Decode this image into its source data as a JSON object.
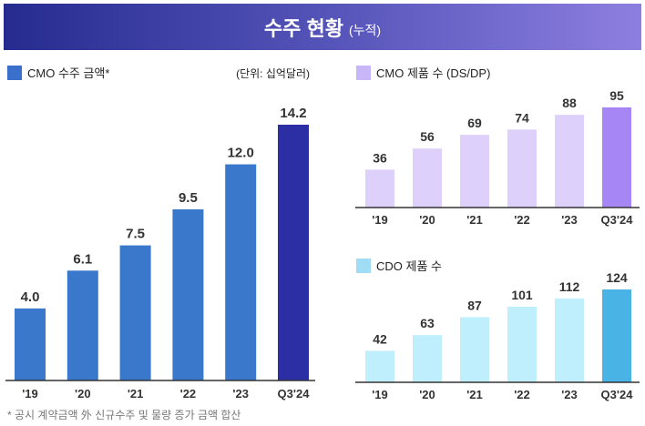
{
  "title": {
    "main": "수주 현황",
    "sub": "(누적)"
  },
  "footnote": "* 공시 계약금액 外 신규수주 및 물량 증가 금액 합산",
  "chart_data": [
    {
      "type": "bar",
      "legend": "CMO 수주 금액*",
      "unit": "(단위: 십억달러)",
      "categories": [
        "'19",
        "'20",
        "'21",
        "'22",
        "'23",
        "Q3'24"
      ],
      "values": [
        4.0,
        6.1,
        7.5,
        9.5,
        12.0,
        14.2
      ],
      "decimals": 1,
      "colors": {
        "bar": "#3a78cc",
        "highlight": "#2b2fa3",
        "legend": "#3a6fcc"
      },
      "ylim": [
        0,
        14.2
      ]
    },
    {
      "type": "bar",
      "legend": "CMO 제품 수 (DS/DP)",
      "categories": [
        "'19",
        "'20",
        "'21",
        "'22",
        "'23",
        "Q3'24"
      ],
      "values": [
        36,
        56,
        69,
        74,
        88,
        95
      ],
      "decimals": 0,
      "colors": {
        "bar": "#ddd1fb",
        "highlight": "#a686f5",
        "legend": "#c9b6f8"
      },
      "ylim": [
        0,
        95
      ]
    },
    {
      "type": "bar",
      "legend": "CDO 제품 수",
      "categories": [
        "'19",
        "'20",
        "'21",
        "'22",
        "'23",
        "Q3'24"
      ],
      "values": [
        42,
        63,
        87,
        101,
        112,
        124
      ],
      "decimals": 0,
      "colors": {
        "bar": "#bfeefc",
        "highlight": "#48b3e4",
        "legend": "#9fdcf5"
      },
      "ylim": [
        0,
        124
      ]
    }
  ]
}
